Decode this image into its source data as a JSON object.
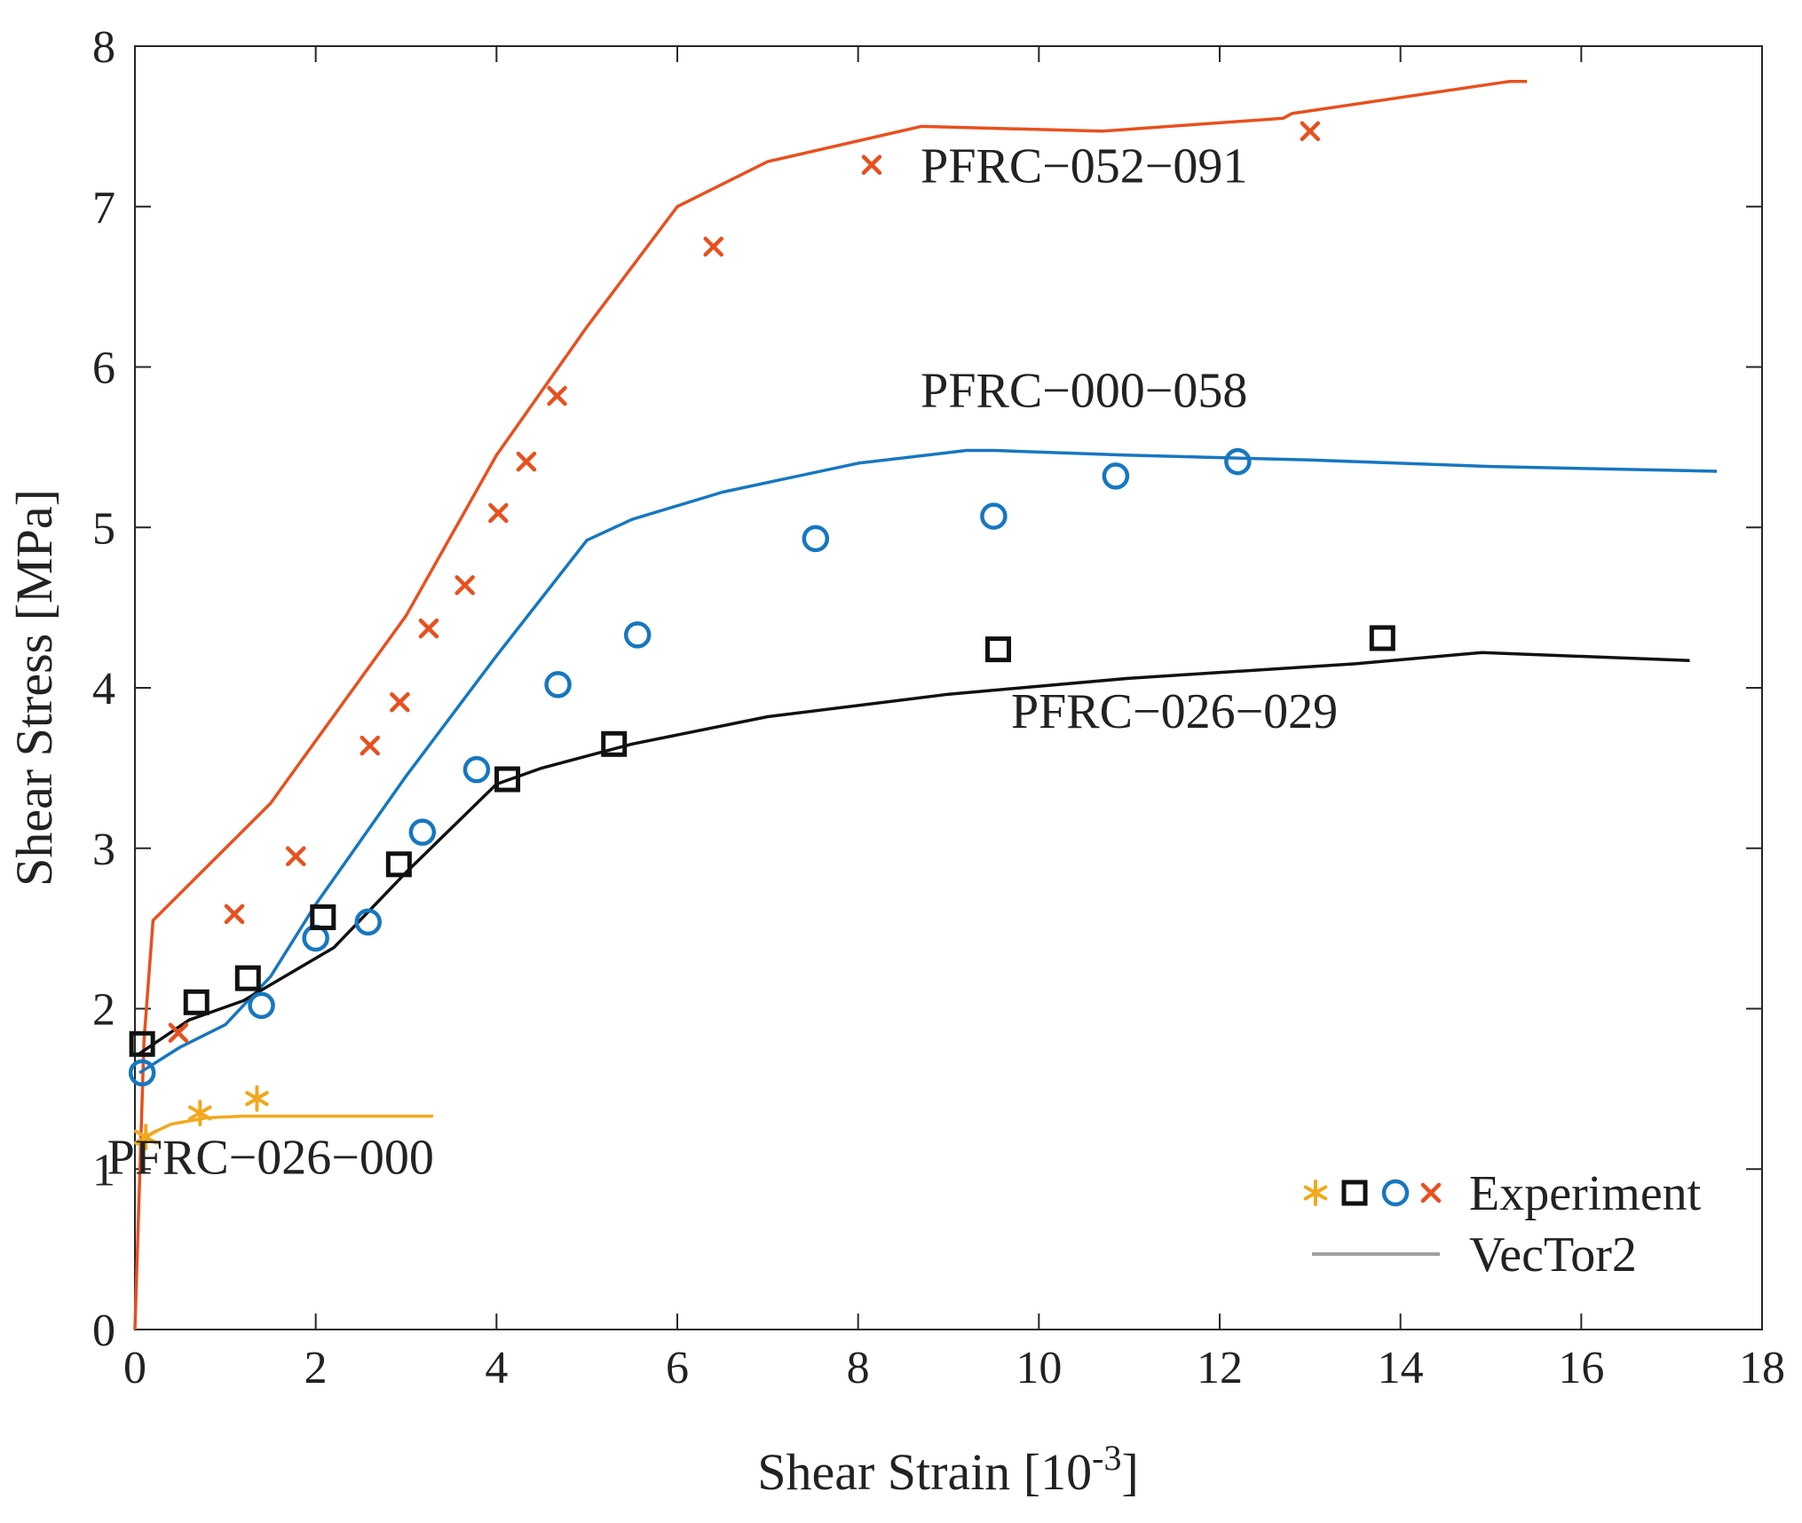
{
  "chart_data": {
    "type": "line",
    "title": "",
    "xlabel": "Shear Strain [10",
    "xlabel_sup": "-3",
    "xlabel_close": "]",
    "ylabel": "Shear Stress [MPa]",
    "xlim": [
      0,
      18
    ],
    "ylim": [
      0,
      8
    ],
    "xticks": [
      0,
      2,
      4,
      6,
      8,
      10,
      12,
      14,
      16,
      18
    ],
    "yticks": [
      0,
      1,
      2,
      3,
      4,
      5,
      6,
      7,
      8
    ],
    "grid": false,
    "legend": {
      "position": "bottom-right",
      "entries": [
        {
          "label": "Experiment",
          "markers": [
            "asterisk",
            "square",
            "circle",
            "cross"
          ]
        },
        {
          "label": "VecTor2",
          "line_color": "#a0a0a0"
        }
      ]
    },
    "series": [
      {
        "name": "PFRC−052−091",
        "color": "#e8501e",
        "marker": "cross",
        "label_anchor": [
          10.5,
          7.15
        ],
        "vector2": {
          "x": [
            0,
            0.1,
            0.2,
            1.5,
            3.0,
            4.0,
            5.0,
            6.0,
            7.0,
            8.7,
            10.7,
            12.7,
            12.8,
            15.2,
            15.4
          ],
          "y": [
            0,
            1.8,
            2.55,
            3.28,
            4.45,
            5.45,
            6.25,
            7.0,
            7.28,
            7.5,
            7.47,
            7.55,
            7.58,
            7.78,
            7.78
          ]
        },
        "experiment": {
          "x": [
            0.48,
            1.1,
            1.78,
            2.6,
            2.93,
            3.25,
            3.65,
            4.02,
            4.33,
            4.67,
            6.4,
            8.15,
            13.0
          ],
          "y": [
            1.85,
            2.59,
            2.95,
            3.64,
            3.91,
            4.37,
            4.64,
            5.09,
            5.41,
            5.82,
            6.75,
            7.26,
            7.47
          ]
        }
      },
      {
        "name": "PFRC−000−058",
        "color": "#1677c0",
        "marker": "circle",
        "label_anchor": [
          10.5,
          5.75
        ],
        "vector2": {
          "x": [
            0.05,
            0.5,
            1.0,
            1.5,
            2.0,
            3.0,
            4.0,
            5.0,
            5.5,
            6.5,
            8.0,
            9.2,
            9.5,
            11.0,
            13.0,
            15.0,
            17.5
          ],
          "y": [
            1.6,
            1.76,
            1.9,
            2.2,
            2.65,
            3.45,
            4.2,
            4.92,
            5.05,
            5.22,
            5.4,
            5.48,
            5.48,
            5.45,
            5.42,
            5.38,
            5.35
          ]
        },
        "experiment": {
          "x": [
            0.08,
            1.4,
            2.0,
            2.58,
            3.18,
            3.78,
            4.68,
            5.56,
            7.53,
            9.5,
            10.85,
            12.2
          ],
          "y": [
            1.6,
            2.02,
            2.44,
            2.54,
            3.1,
            3.49,
            4.02,
            4.33,
            4.93,
            5.07,
            5.32,
            5.41
          ]
        }
      },
      {
        "name": "PFRC−026−029",
        "color": "#111111",
        "marker": "square",
        "label_anchor": [
          11.5,
          3.75
        ],
        "vector2": {
          "x": [
            0.05,
            0.6,
            1.2,
            2.2,
            3.0,
            4.0,
            4.5,
            5.5,
            7.0,
            9.0,
            11.0,
            13.5,
            14.9,
            17.2
          ],
          "y": [
            1.72,
            1.93,
            2.05,
            2.38,
            2.85,
            3.4,
            3.5,
            3.65,
            3.82,
            3.96,
            4.06,
            4.15,
            4.22,
            4.17
          ]
        },
        "experiment": {
          "x": [
            0.08,
            0.68,
            1.25,
            2.08,
            2.92,
            4.12,
            5.3,
            9.55,
            13.8
          ],
          "y": [
            1.78,
            2.04,
            2.19,
            2.57,
            2.9,
            3.43,
            3.65,
            4.24,
            4.31
          ]
        }
      },
      {
        "name": "PFRC−026−000",
        "color": "#f2a81d",
        "marker": "asterisk",
        "label_anchor": [
          1.5,
          0.97
        ],
        "vector2": {
          "x": [
            0.02,
            0.1,
            0.4,
            0.8,
            1.2,
            1.8,
            2.5,
            3.3
          ],
          "y": [
            1.15,
            1.2,
            1.28,
            1.32,
            1.33,
            1.33,
            1.33,
            1.33
          ]
        },
        "experiment": {
          "x": [
            0.12,
            0.72,
            1.35
          ],
          "y": [
            1.2,
            1.35,
            1.44
          ]
        }
      }
    ]
  }
}
